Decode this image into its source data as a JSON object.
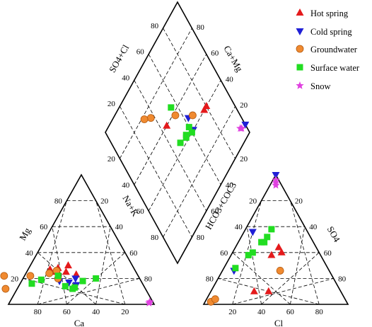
{
  "colors": {
    "hot_spring": "#e41a1c",
    "cold_spring": "#1f1fd6",
    "groundwater": "#f08a30",
    "groundwater_edge": "#b35a10",
    "surface_water": "#22dd22",
    "snow": "#e040e0"
  },
  "chart_data": {
    "type": "scatter",
    "subtype": "piper-diagram",
    "title": "",
    "panels": {
      "cation_triangle": {
        "axes": {
          "left": "Mg",
          "bottom": "Ca"
        },
        "ticks": {
          "left": [
            "20",
            "40",
            "60",
            "80"
          ],
          "bottom": [
            "80",
            "60",
            "40",
            "20"
          ],
          "right": [
            "20",
            "40",
            "60",
            "80"
          ]
        }
      },
      "anion_triangle": {
        "axes": {
          "right": "SO4",
          "bottom": "Cl"
        },
        "ticks": {
          "left": [
            "20",
            "40",
            "60",
            "80"
          ],
          "bottom": [
            "20",
            "40",
            "60",
            "80"
          ],
          "right": [
            "80",
            "60",
            "40",
            "20"
          ]
        }
      },
      "diamond": {
        "axes": {
          "upper_left": "SO4+Cl",
          "upper_right": "Ca+Mg",
          "lower_left": "Na+K",
          "lower_right": "HCO3+COC3"
        },
        "ticks": {
          "upper_left": [
            "20",
            "40",
            "60",
            "80"
          ],
          "upper_right": [
            "80",
            "60",
            "40",
            "20"
          ],
          "lower_left": [
            "20",
            "40",
            "60",
            "80"
          ],
          "lower_right": [
            "20",
            "40",
            "60",
            "80"
          ]
        }
      }
    },
    "series": [
      {
        "key": "hot_spring",
        "name": "Hot spring",
        "marker": "triangle-up",
        "cations": [
          {
            "ca": 42,
            "mg": 23
          },
          {
            "ca": 44,
            "mg": 30
          },
          {
            "ca": 52,
            "mg": 28
          },
          {
            "ca": 55,
            "mg": 25
          },
          {
            "ca": 58,
            "mg": 27
          },
          {
            "ca": 48,
            "mg": 25
          }
        ],
        "anions": [
          {
            "cl": 28,
            "so4": 38
          },
          {
            "cl": 34,
            "so4": 40
          },
          {
            "cl": 30,
            "so4": 10
          },
          {
            "cl": 40,
            "so4": 10
          },
          {
            "cl": 30,
            "so4": 44
          }
        ],
        "diamond": [
          {
            "scl": 40,
            "camg": 80
          },
          {
            "scl": 40,
            "camg": 77
          },
          {
            "scl": 60,
            "camg": 45
          }
        ]
      },
      {
        "key": "cold_spring",
        "name": "Cold spring",
        "marker": "triangle-down",
        "cations": [
          {
            "ca": 50,
            "mg": 17
          },
          {
            "ca": 46,
            "mg": 15
          },
          {
            "ca": 56,
            "mg": 18
          },
          {
            "ca": 44,
            "mg": 20
          }
        ],
        "anions": [
          {
            "cl": 6,
            "so4": 56
          },
          {
            "cl": 8,
            "so4": 26
          },
          {
            "cl": 0,
            "so4": 100
          }
        ],
        "diamond": [
          {
            "scl": 48,
            "camg": 63
          },
          {
            "scl": 40,
            "camg": 62
          },
          {
            "scl": 6,
            "camg": 100
          }
        ]
      },
      {
        "key": "groundwater",
        "name": "Groundwater",
        "marker": "circle",
        "cations": [
          {
            "ca": 92,
            "mg": 22
          },
          {
            "ca": 96,
            "mg": 12
          },
          {
            "ca": 74,
            "mg": 22
          },
          {
            "ca": 56,
            "mg": 20
          },
          {
            "ca": 60,
            "mg": 24
          },
          {
            "ca": 54,
            "mg": 26
          }
        ],
        "anions": [
          {
            "cl": 4,
            "so4": 2
          },
          {
            "cl": 6,
            "so4": 4
          },
          {
            "cl": 40,
            "so4": 26
          }
        ],
        "diamond": [
          {
            "scl": 74,
            "camg": 37
          },
          {
            "scl": 78,
            "camg": 32
          },
          {
            "scl": 58,
            "camg": 55
          },
          {
            "scl": 46,
            "camg": 67
          }
        ]
      },
      {
        "key": "surface_water",
        "name": "Surface water",
        "marker": "square",
        "cations": [
          {
            "ca": 76,
            "mg": 16
          },
          {
            "ca": 68,
            "mg": 19
          },
          {
            "ca": 54,
            "mg": 14
          },
          {
            "ca": 50,
            "mg": 12
          },
          {
            "ca": 48,
            "mg": 13
          },
          {
            "ca": 40,
            "mg": 18
          },
          {
            "ca": 30,
            "mg": 20
          },
          {
            "ca": 55,
            "mg": 22
          }
        ],
        "anions": [
          {
            "cl": 16,
            "so4": 48
          },
          {
            "cl": 18,
            "so4": 48
          },
          {
            "cl": 18,
            "so4": 52
          },
          {
            "cl": 14,
            "so4": 40
          },
          {
            "cl": 12,
            "so4": 38
          },
          {
            "cl": 8,
            "so4": 28
          },
          {
            "cl": 18,
            "so4": 58
          }
        ],
        "diamond": [
          {
            "scl": 64,
            "camg": 55
          },
          {
            "scl": 44,
            "camg": 60
          },
          {
            "scl": 40,
            "camg": 60
          },
          {
            "scl": 43,
            "camg": 55
          },
          {
            "scl": 42,
            "camg": 54
          },
          {
            "scl": 44,
            "camg": 48
          }
        ]
      },
      {
        "key": "snow",
        "name": "Snow",
        "marker": "star",
        "cations": [
          {
            "ca": 2,
            "mg": 2
          },
          {
            "ca": 3,
            "mg": 1
          }
        ],
        "anions": [
          {
            "cl": 4,
            "so4": 92
          },
          {
            "cl": 3,
            "so4": 94
          },
          {
            "cl": 2,
            "so4": 96
          }
        ],
        "diamond": [
          {
            "scl": 7,
            "camg": 96
          },
          {
            "scl": 8,
            "camg": 95
          }
        ]
      }
    ],
    "legend": {
      "position": "top-right"
    },
    "grid": true
  }
}
